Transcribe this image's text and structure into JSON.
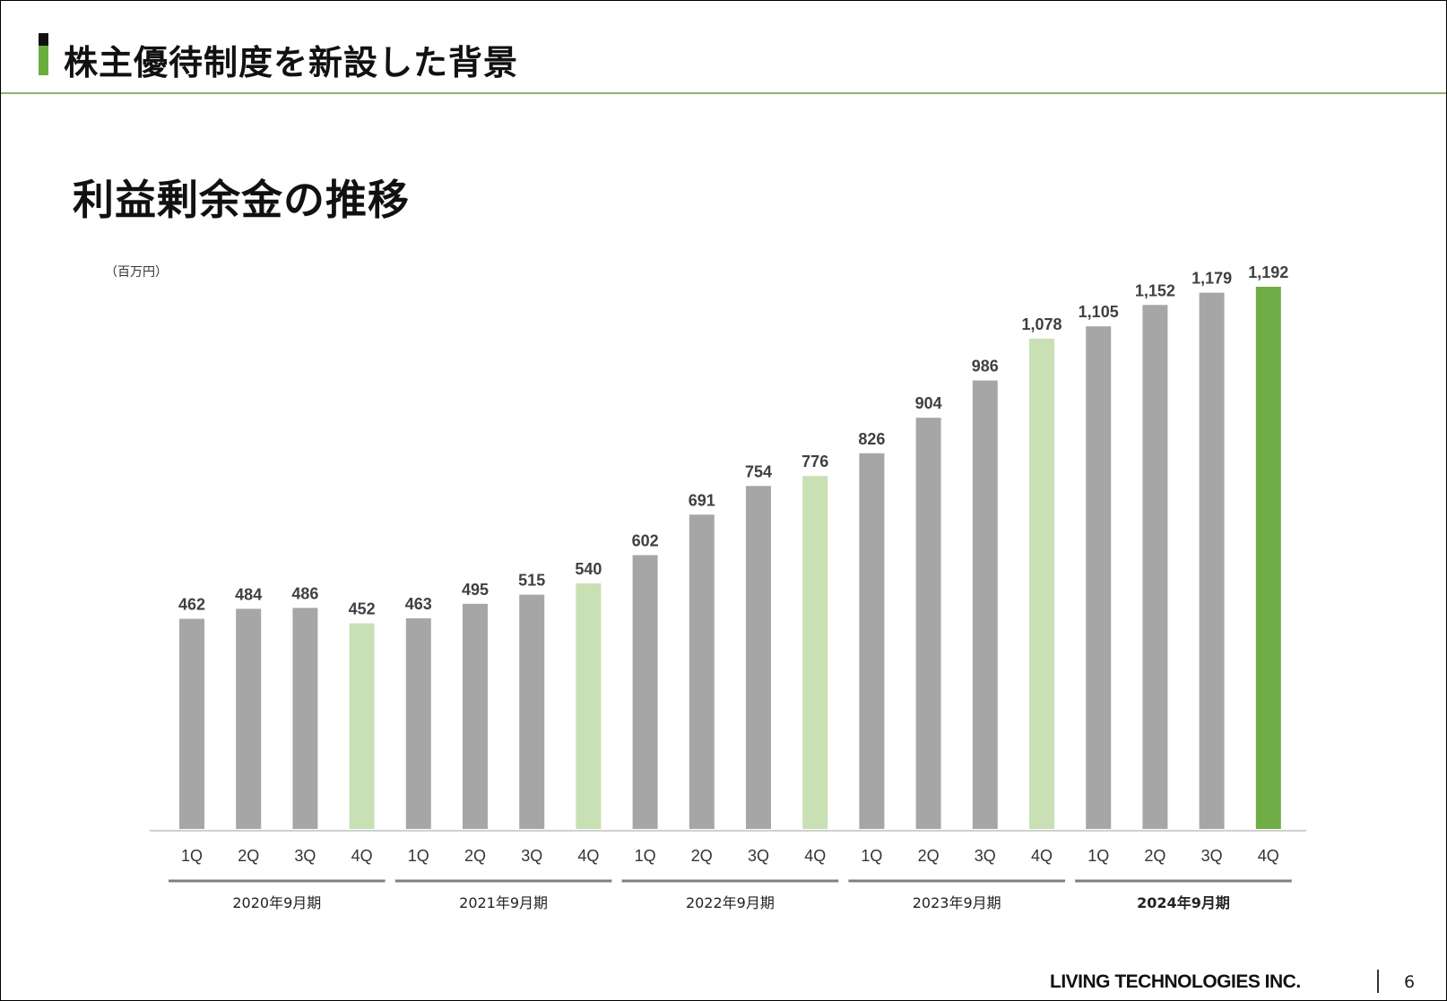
{
  "header": {
    "title": "株主優待制度を新設した背景"
  },
  "subtitle": "利益剰余金の推移",
  "footer": {
    "brand": "LIVING TECHNOLOGIES INC.",
    "page": "6"
  },
  "colors": {
    "bar_default": "#a6a6a6",
    "bar_year_end": "#c8e0b4",
    "bar_latest": "#70ad47",
    "header_accent": "#6aaf3d"
  },
  "chart_data": {
    "type": "bar",
    "unit_label": "（百万円）",
    "groups": [
      {
        "label": "2020年9月期",
        "bold": false,
        "quarters": [
          "1Q",
          "2Q",
          "3Q",
          "4Q"
        ],
        "values": [
          462,
          484,
          486,
          452
        ],
        "value_labels": [
          "462",
          "484",
          "486",
          "452"
        ]
      },
      {
        "label": "2021年9月期",
        "bold": false,
        "quarters": [
          "1Q",
          "2Q",
          "3Q",
          "4Q"
        ],
        "values": [
          463,
          495,
          515,
          540
        ],
        "value_labels": [
          "463",
          "495",
          "515",
          "540"
        ]
      },
      {
        "label": "2022年9月期",
        "bold": false,
        "quarters": [
          "1Q",
          "2Q",
          "3Q",
          "4Q"
        ],
        "values": [
          602,
          691,
          754,
          776
        ],
        "value_labels": [
          "602",
          "691",
          "754",
          "776"
        ]
      },
      {
        "label": "2023年9月期",
        "bold": false,
        "quarters": [
          "1Q",
          "2Q",
          "3Q",
          "4Q"
        ],
        "values": [
          826,
          904,
          986,
          1078
        ],
        "value_labels": [
          "826",
          "904",
          "986",
          "1,078"
        ]
      },
      {
        "label": "2024年9月期",
        "bold": true,
        "quarters": [
          "1Q",
          "2Q",
          "3Q",
          "4Q"
        ],
        "values": [
          1105,
          1152,
          1179,
          1192
        ],
        "value_labels": [
          "1,105",
          "1,152",
          "1,179",
          "1,192"
        ]
      }
    ],
    "ylim": [
      0,
      1192
    ],
    "grid": false,
    "legend": "none"
  }
}
